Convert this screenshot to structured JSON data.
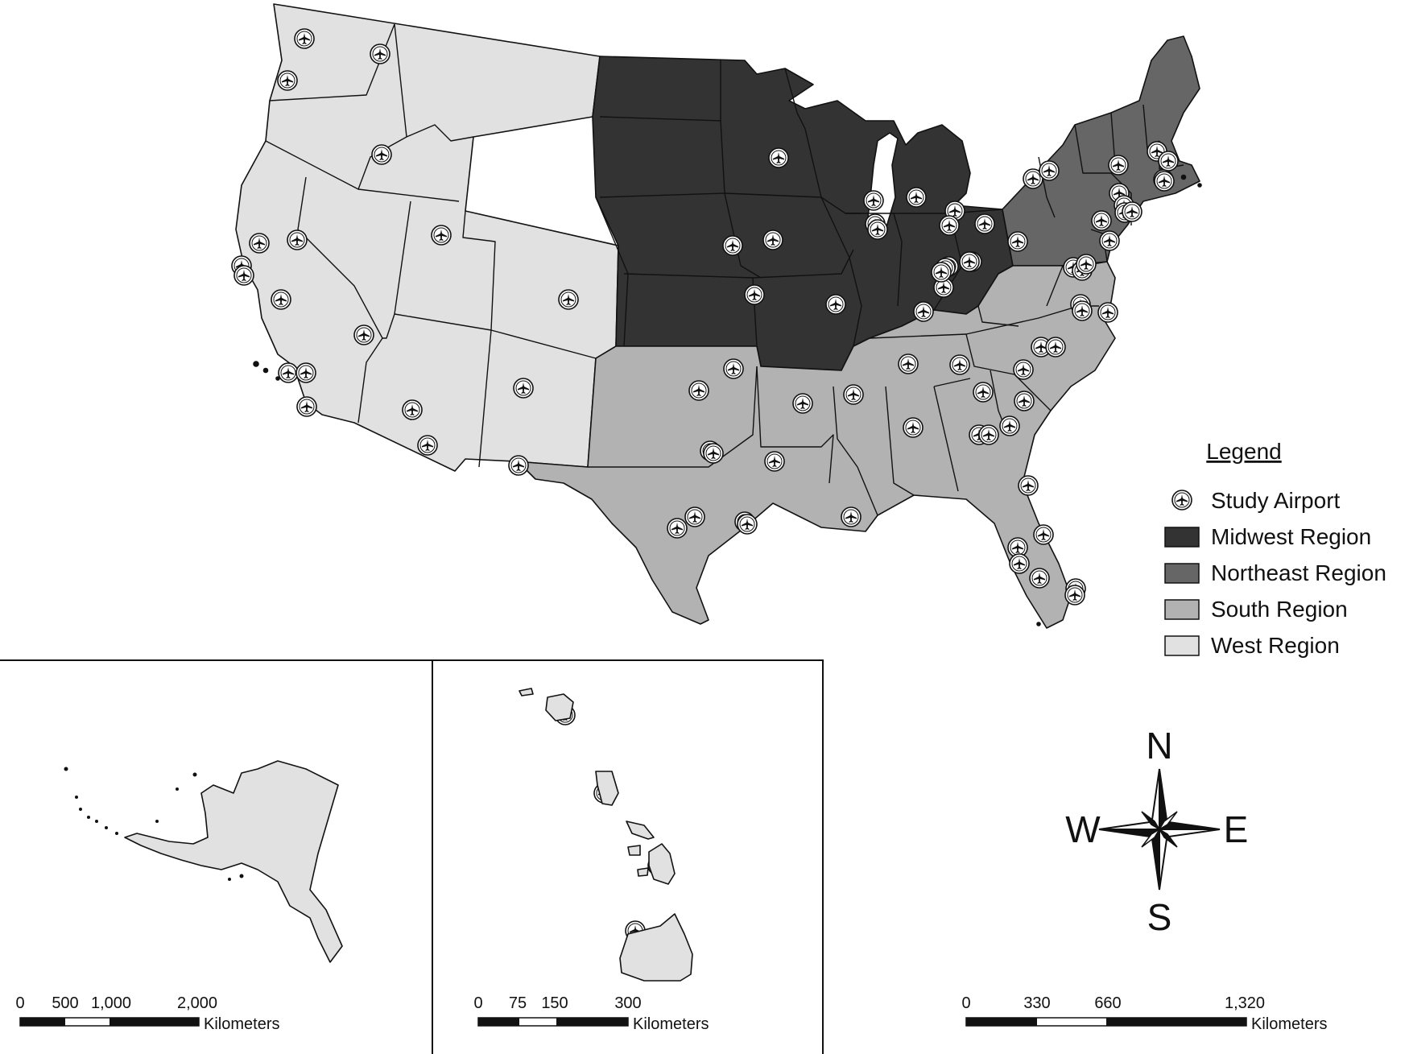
{
  "legend": {
    "title": "Legend",
    "items": [
      {
        "label": "Study Airport",
        "type": "airport-icon"
      },
      {
        "label": "Midwest Region",
        "color": "#333333"
      },
      {
        "label": "Northeast Region",
        "color": "#666666"
      },
      {
        "label": "South Region",
        "color": "#b2b2b2"
      },
      {
        "label": "West Region",
        "color": "#e1e1e1"
      }
    ]
  },
  "compass": {
    "n": "N",
    "s": "S",
    "e": "E",
    "w": "W"
  },
  "scalebars": {
    "alaska": {
      "ticks": [
        "0",
        "500",
        "1,000",
        "2,000"
      ],
      "unit": "Kilometers"
    },
    "hawaii": {
      "ticks": [
        "0",
        "75",
        "150",
        "300"
      ],
      "unit": "Kilometers"
    },
    "conus": {
      "ticks": [
        "0",
        "330",
        "660",
        "1,320"
      ],
      "unit": "Kilometers"
    }
  },
  "colors": {
    "midwest": "#333333",
    "northeast": "#666666",
    "south": "#b2b2b2",
    "west": "#e1e1e1",
    "outline": "#111111"
  }
}
